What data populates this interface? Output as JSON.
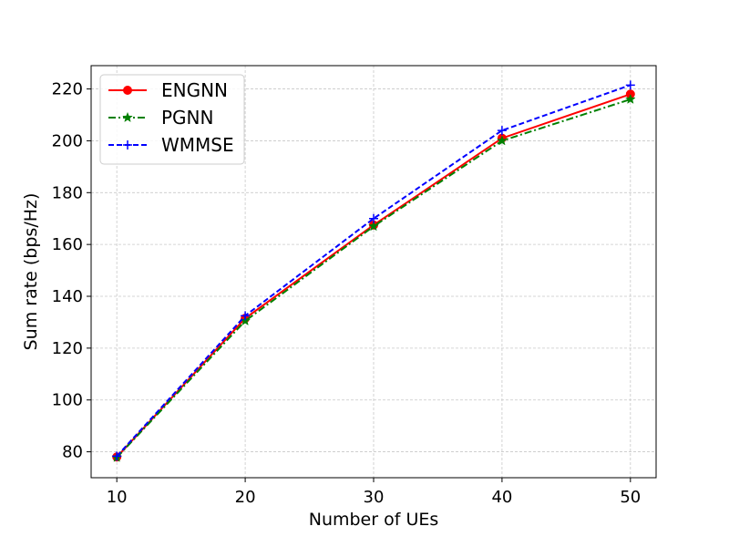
{
  "chart_data": {
    "type": "line",
    "title": "",
    "xlabel": "Number of UEs",
    "ylabel": "Sum rate (bps/Hz)",
    "x": [
      10,
      20,
      30,
      40,
      50
    ],
    "xlim": [
      8,
      52
    ],
    "ylim": [
      70,
      229
    ],
    "xticks": [
      10,
      20,
      30,
      40,
      50
    ],
    "yticks": [
      80,
      100,
      120,
      140,
      160,
      180,
      200,
      220
    ],
    "grid": true,
    "legend_position": "upper-left",
    "series": [
      {
        "name": "ENGNN",
        "values": [
          78.0,
          131.5,
          167.5,
          201.0,
          218.0
        ],
        "color": "#ff0000",
        "linestyle": "solid",
        "marker": "circle"
      },
      {
        "name": "PGNN",
        "values": [
          77.8,
          130.5,
          167.0,
          200.0,
          216.0
        ],
        "color": "#008000",
        "linestyle": "dashdot",
        "marker": "star"
      },
      {
        "name": "WMMSE",
        "values": [
          78.3,
          132.5,
          170.0,
          204.0,
          221.5
        ],
        "color": "#0000ff",
        "linestyle": "dashed",
        "marker": "plus"
      }
    ]
  }
}
